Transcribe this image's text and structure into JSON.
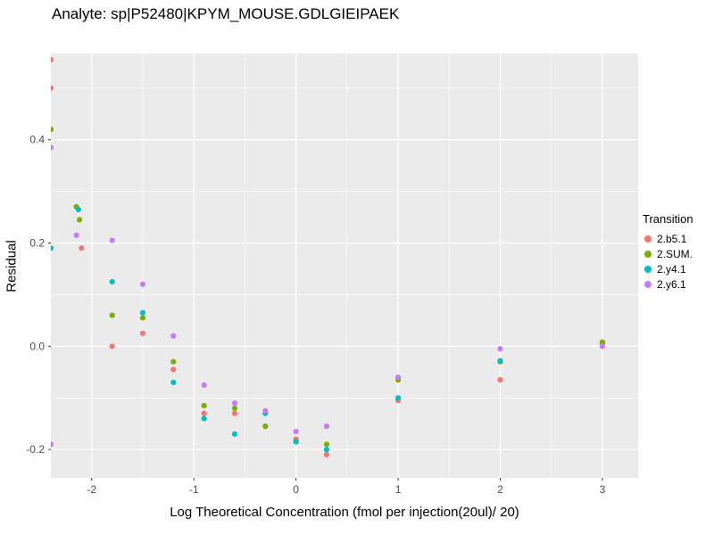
{
  "chart_data": {
    "type": "scatter",
    "title": "Analyte: sp|P52480|KPYM_MOUSE.GDLGIEIPAEK",
    "xlabel": "Log Theoretical Concentration (fmol per injection(20ul)/ 20)",
    "ylabel": "Residual",
    "xlim": [
      -2.4,
      3.35
    ],
    "ylim": [
      -0.255,
      0.567
    ],
    "xticks": {
      "values": [
        -2,
        -1,
        0,
        1,
        2,
        3
      ],
      "labels": [
        "-2",
        "-1",
        "0",
        "1",
        "2",
        "3"
      ]
    },
    "yticks": {
      "values": [
        -0.2,
        0.0,
        0.2,
        0.4
      ],
      "labels": [
        "-0.2",
        "0.0",
        "0.2",
        "0.4"
      ]
    },
    "grid": true,
    "panel_background": "#EBEBEB",
    "gridline_color": "#FFFFFF",
    "tick_color": "#333333",
    "tick_label_color": "#4D4D4D",
    "legend_position": "right",
    "legend_title": "Transition",
    "series": [
      {
        "name": "2.b5.1",
        "color": "#F8766D",
        "points": [
          [
            -2.4,
            0.555
          ],
          [
            -2.4,
            0.5
          ],
          [
            -2.1,
            0.19
          ],
          [
            -1.8,
            0.0
          ],
          [
            -1.5,
            0.025
          ],
          [
            -1.2,
            -0.045
          ],
          [
            -0.9,
            -0.13
          ],
          [
            -0.6,
            -0.13
          ],
          [
            -0.3,
            -0.155
          ],
          [
            0.0,
            -0.18
          ],
          [
            0.3,
            -0.21
          ],
          [
            1.0,
            -0.105
          ],
          [
            2.0,
            -0.065
          ],
          [
            3.0,
            0.005
          ]
        ]
      },
      {
        "name": "2.SUM.",
        "color": "#7CAE00",
        "points": [
          [
            -2.4,
            0.42
          ],
          [
            -2.15,
            0.27
          ],
          [
            -2.12,
            0.245
          ],
          [
            -1.8,
            0.06
          ],
          [
            -1.5,
            0.055
          ],
          [
            -1.2,
            -0.03
          ],
          [
            -0.9,
            -0.115
          ],
          [
            -0.6,
            -0.12
          ],
          [
            -0.3,
            -0.155
          ],
          [
            0.0,
            -0.185
          ],
          [
            0.3,
            -0.19
          ],
          [
            1.0,
            -0.065
          ],
          [
            2.0,
            -0.03
          ],
          [
            3.0,
            0.008
          ]
        ]
      },
      {
        "name": "2.y4.1",
        "color": "#00BFC4",
        "points": [
          [
            -2.4,
            0.19
          ],
          [
            -2.13,
            0.265
          ],
          [
            -1.8,
            0.125
          ],
          [
            -1.5,
            0.065
          ],
          [
            -1.2,
            -0.07
          ],
          [
            -0.9,
            -0.14
          ],
          [
            -0.6,
            -0.17
          ],
          [
            -0.3,
            -0.13
          ],
          [
            0.0,
            -0.185
          ],
          [
            0.3,
            -0.2
          ],
          [
            1.0,
            -0.1
          ],
          [
            2.0,
            -0.028
          ],
          [
            3.0,
            0.0
          ]
        ]
      },
      {
        "name": "2.y6.1",
        "color": "#C77CFF",
        "points": [
          [
            -2.4,
            0.385
          ],
          [
            -2.4,
            -0.19
          ],
          [
            -2.15,
            0.215
          ],
          [
            -1.8,
            0.205
          ],
          [
            -1.5,
            0.12
          ],
          [
            -1.2,
            0.02
          ],
          [
            -0.9,
            -0.075
          ],
          [
            -0.6,
            -0.11
          ],
          [
            -0.3,
            -0.125
          ],
          [
            0.0,
            -0.165
          ],
          [
            0.3,
            -0.155
          ],
          [
            1.0,
            -0.06
          ],
          [
            2.0,
            -0.005
          ],
          [
            3.0,
            0.0
          ]
        ]
      }
    ]
  }
}
